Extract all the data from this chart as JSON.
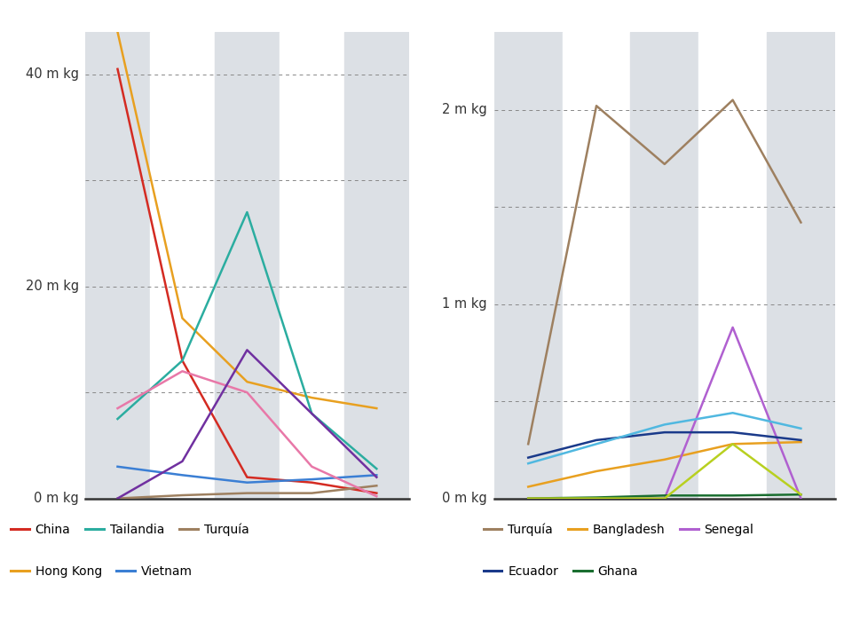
{
  "left": {
    "x": [
      0,
      1,
      2,
      3,
      4
    ],
    "ylim": [
      0,
      44
    ],
    "ytick_labeled": [
      0,
      20,
      40
    ],
    "ytick_labeled_labels": [
      "0 m kg",
      "20 m kg",
      "40 m kg"
    ],
    "ytick_all": [
      0,
      10,
      20,
      30,
      40
    ],
    "series": {
      "China": {
        "color": "#d42b22",
        "data": [
          40.5,
          13.0,
          2.0,
          1.5,
          0.5
        ]
      },
      "HongKong": {
        "color": "#e8a020",
        "data": [
          44.0,
          17.0,
          11.0,
          9.5,
          8.5
        ]
      },
      "Tailandia": {
        "color": "#2bada0",
        "data": [
          7.5,
          13.0,
          27.0,
          8.0,
          2.8
        ]
      },
      "Vietnam": {
        "color": "#3b7fd4",
        "data": [
          3.0,
          2.2,
          1.5,
          1.8,
          2.2
        ]
      },
      "TurquiaL": {
        "color": "#9e8060",
        "data": [
          0.0,
          0.3,
          0.5,
          0.5,
          1.2
        ]
      },
      "Pink": {
        "color": "#e878a8",
        "data": [
          8.5,
          12.0,
          10.0,
          3.0,
          0.2
        ]
      },
      "Purple": {
        "color": "#7030a0",
        "data": [
          0.0,
          3.5,
          14.0,
          8.0,
          2.0
        ]
      }
    }
  },
  "right": {
    "x": [
      0,
      1,
      2,
      3,
      4
    ],
    "ylim": [
      0,
      2.4
    ],
    "ytick_labeled": [
      0,
      1.0,
      2.0
    ],
    "ytick_labeled_labels": [
      "0 m kg",
      "1 m kg",
      "2 m kg"
    ],
    "ytick_all": [
      0,
      0.5,
      1.0,
      1.5,
      2.0
    ],
    "series": {
      "TurquiaR": {
        "color": "#9e8060",
        "data": [
          0.28,
          2.02,
          1.72,
          2.05,
          1.42
        ]
      },
      "Bangladesh": {
        "color": "#e8a020",
        "data": [
          0.06,
          0.14,
          0.2,
          0.28,
          0.29
        ]
      },
      "Senegal": {
        "color": "#b060d0",
        "data": [
          0.0,
          0.0,
          0.0,
          0.88,
          0.0
        ]
      },
      "Ecuador": {
        "color": "#1a3a8a",
        "data": [
          0.21,
          0.3,
          0.34,
          0.34,
          0.3
        ]
      },
      "Ghana": {
        "color": "#1a6e30",
        "data": [
          0.0,
          0.005,
          0.015,
          0.015,
          0.02
        ]
      },
      "LightBlue": {
        "color": "#50b8e0",
        "data": [
          0.18,
          0.28,
          0.38,
          0.44,
          0.36
        ]
      },
      "YellowGreen": {
        "color": "#b8d020",
        "data": [
          0.0,
          0.0,
          0.0,
          0.28,
          0.02
        ]
      }
    }
  },
  "bg_color": "#ffffff",
  "stripe_color": "#dce0e5",
  "grid_color": "#888888",
  "font_color": "#333333",
  "line_width": 1.8,
  "legend_left_row1": [
    {
      "label": "China",
      "color": "#d42b22"
    },
    {
      "label": "Tailandia",
      "color": "#2bada0"
    },
    {
      "label": "Turquía",
      "color": "#9e8060"
    }
  ],
  "legend_left_row2": [
    {
      "label": "Hong Kong",
      "color": "#e8a020"
    },
    {
      "label": "Vietnam",
      "color": "#3b7fd4"
    }
  ],
  "legend_right_row1": [
    {
      "label": "Turquía",
      "color": "#9e8060"
    },
    {
      "label": "Bangladesh",
      "color": "#e8a020"
    },
    {
      "label": "Senegal",
      "color": "#b060d0"
    }
  ],
  "legend_right_row2": [
    {
      "label": "Ecuador",
      "color": "#1a3a8a"
    },
    {
      "label": "Ghana",
      "color": "#1a6e30"
    }
  ]
}
